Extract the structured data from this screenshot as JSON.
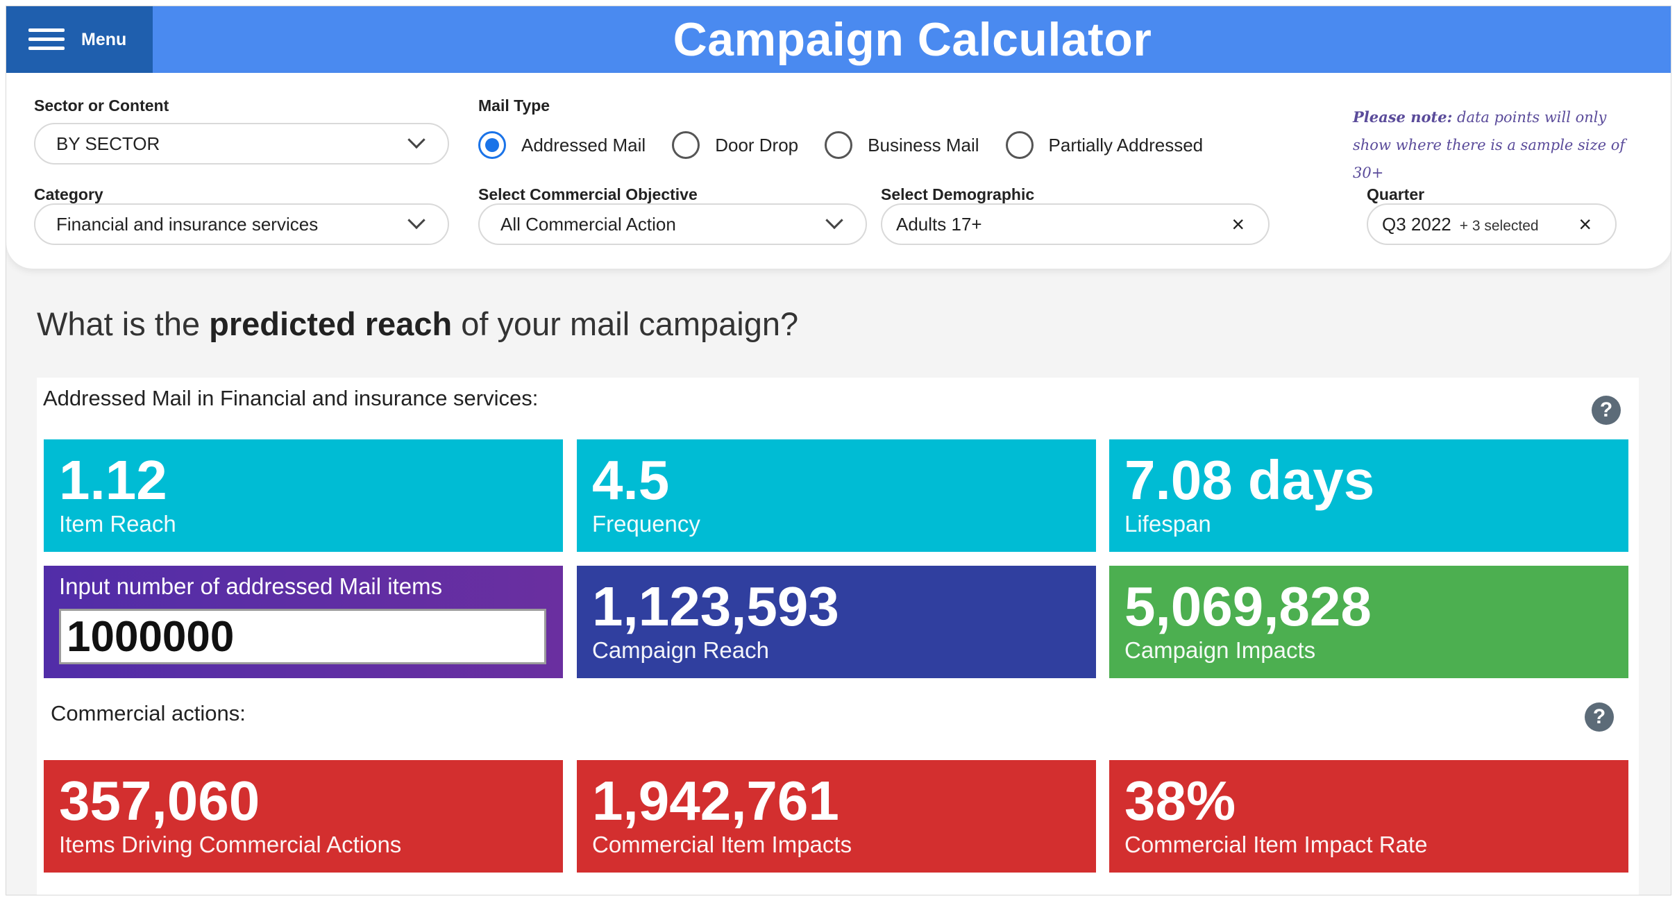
{
  "header": {
    "menu_label": "Menu",
    "title": "Campaign Calculator"
  },
  "filters": {
    "sector": {
      "label": "Sector or Content",
      "value": "BY SECTOR"
    },
    "category": {
      "label": "Category",
      "value": "Financial and insurance services"
    },
    "mail_type": {
      "label": "Mail Type",
      "options": [
        "Addressed Mail",
        "Door Drop",
        "Business Mail",
        "Partially Addressed"
      ],
      "selected": "Addressed Mail"
    },
    "objective": {
      "label": "Select Commercial Objective",
      "value": "All Commercial Action"
    },
    "demographic": {
      "label": "Select Demographic",
      "value": "Adults 17+"
    },
    "quarter": {
      "label": "Quarter",
      "value": "Q3 2022",
      "extra": "+ 3 selected"
    },
    "note": {
      "bold": "Please note:",
      "text": "data points will only show where there is a sample size of 30+"
    }
  },
  "question": {
    "pre": "What is the ",
    "bold": "predicted reach",
    "post": " of your mail campaign?"
  },
  "reach_section": {
    "title": "Addressed Mail in Financial and insurance services:",
    "item_reach": {
      "value": "1.12",
      "label": "Item Reach"
    },
    "frequency": {
      "value": "4.5",
      "label": "Frequency"
    },
    "lifespan": {
      "value": "7.08 days",
      "label": "Lifespan"
    },
    "input": {
      "label": "Input number of addressed Mail items",
      "value": "1000000"
    },
    "campaign_reach": {
      "value": "1,123,593",
      "label": "Campaign Reach"
    },
    "campaign_impacts": {
      "value": "5,069,828",
      "label": "Campaign Impacts"
    }
  },
  "commercial_section": {
    "title": "Commercial actions:",
    "items_driving": {
      "value": "357,060",
      "label": "Items Driving Commercial Actions"
    },
    "item_impacts": {
      "value": "1,942,761",
      "label": "Commercial Item Impacts"
    },
    "impact_rate": {
      "value": "38%",
      "label": "Commercial Item Impact Rate"
    }
  },
  "colors": {
    "header_blue": "#4a8af0",
    "menu_blue": "#1f5fae",
    "cyan": "#00bcd4",
    "navy": "#303f9f",
    "green": "#4caf50",
    "red": "#d32f2f",
    "purple": "#512da8"
  },
  "icons": [
    "hamburger-icon",
    "chevron-down-icon",
    "close-icon",
    "help-icon"
  ]
}
